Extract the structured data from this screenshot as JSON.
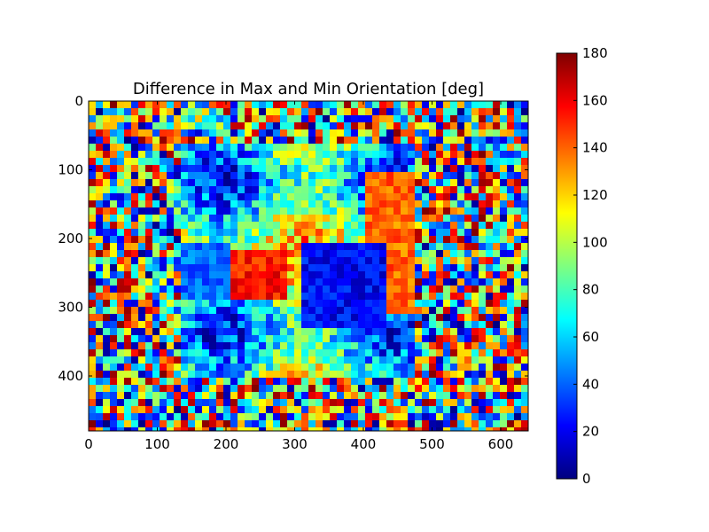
{
  "chart_data": {
    "type": "heatmap",
    "title": "Difference in Max and Min Orientation [deg]",
    "xlabel": "",
    "ylabel": "",
    "xlim": [
      0,
      640
    ],
    "ylim": [
      480,
      0
    ],
    "x_ticks": [
      "0",
      "100",
      "200",
      "300",
      "400",
      "500",
      "600"
    ],
    "y_ticks": [
      "0",
      "100",
      "200",
      "300",
      "400"
    ],
    "x_tick_values": [
      0,
      100,
      200,
      300,
      400,
      500,
      600
    ],
    "y_tick_values": [
      0,
      100,
      200,
      300,
      400
    ],
    "colormap": "jet",
    "colorbar": {
      "range": [
        0,
        180
      ],
      "ticks": [
        "0",
        "20",
        "40",
        "60",
        "80",
        "100",
        "120",
        "140",
        "160",
        "180"
      ],
      "tick_values": [
        0,
        20,
        40,
        60,
        80,
        100,
        120,
        140,
        160,
        180
      ]
    },
    "grid": false,
    "description_regions": [
      {
        "x": [
          0,
          130
        ],
        "y": [
          0,
          480
        ],
        "pattern": "noise"
      },
      {
        "x": [
          470,
          640
        ],
        "y": [
          0,
          480
        ],
        "pattern": "noise"
      },
      {
        "x": [
          0,
          640
        ],
        "y": [
          0,
          55
        ],
        "pattern": "noise"
      },
      {
        "x": [
          0,
          640
        ],
        "y": [
          400,
          480
        ],
        "pattern": "noise"
      }
    ]
  },
  "colors": {
    "jet": [
      "#00007f",
      "#0000ff",
      "#007fff",
      "#00ffff",
      "#7fff7f",
      "#ffff00",
      "#ff7f00",
      "#ff0000",
      "#7f0000"
    ]
  }
}
